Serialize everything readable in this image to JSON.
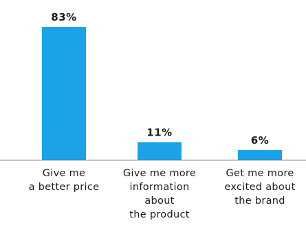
{
  "chart_data": {
    "type": "bar",
    "categories": [
      [
        "Give me",
        "a better price"
      ],
      [
        "Give me more",
        "information",
        "about",
        "the product"
      ],
      [
        "Get me more",
        "excited about",
        "the brand"
      ]
    ],
    "values": [
      83,
      11,
      6
    ],
    "value_labels": [
      "83%",
      "11%",
      "6%"
    ],
    "ylim": [
      0,
      100
    ],
    "grid": false,
    "title": "",
    "xlabel": "",
    "ylabel": ""
  },
  "colors": {
    "bar": "#1aa3e8",
    "axis": "#555555",
    "text": "#1a1a1a"
  }
}
